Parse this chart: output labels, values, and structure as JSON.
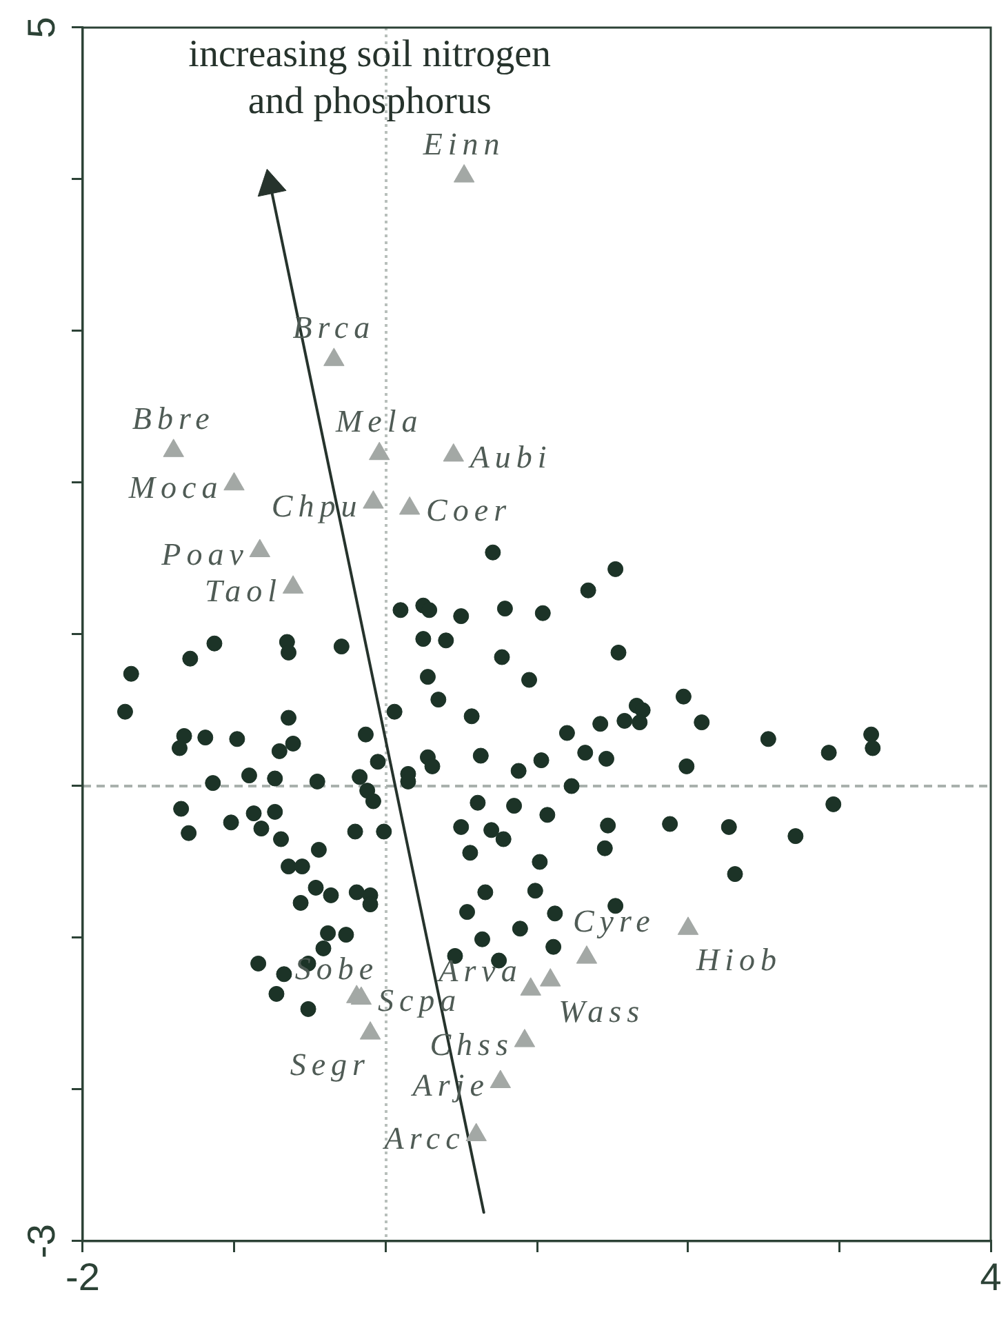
{
  "chart_data": {
    "type": "scatter",
    "xlim": [
      -2,
      4
    ],
    "ylim": [
      -3,
      5
    ],
    "xticks": [
      -2,
      {
        "value": -1,
        "label": null
      },
      {
        "value": 0,
        "label": null
      },
      {
        "value": 1,
        "label": null
      },
      {
        "value": 2,
        "label": null
      },
      {
        "value": 3,
        "label": null
      },
      4
    ],
    "yticks": [
      -3,
      {
        "value": -2,
        "label": null
      },
      {
        "value": -1,
        "label": null
      },
      {
        "value": 0,
        "label": null
      },
      {
        "value": 1,
        "label": null
      },
      {
        "value": 2,
        "label": null
      },
      {
        "value": 3,
        "label": null
      },
      {
        "value": 4,
        "label": null
      },
      5
    ],
    "series": [
      {
        "color": "#1c3327",
        "marker": "circle",
        "x": [
          -1.13,
          -1.29,
          -0.65,
          -0.64,
          -0.29,
          -1.68,
          -1.72,
          -0.64,
          0.06,
          -1.33,
          -1.36,
          -1.19,
          -0.98,
          -0.61,
          -0.7,
          -0.13,
          -0.05,
          0.15,
          0.15,
          -1.14,
          -0.9,
          -0.73,
          -0.45,
          -0.17,
          -0.12,
          -0.08,
          -1.35,
          -1.3,
          -1.02,
          -0.87,
          -0.73,
          -0.82,
          -0.69,
          -0.2,
          -0.01,
          -0.44,
          -0.64,
          -0.55,
          -0.46,
          -0.36,
          -0.56,
          -0.19,
          -0.1,
          -0.1,
          -0.38,
          -0.26,
          -0.41,
          -0.84,
          -0.51,
          -0.67,
          -0.72,
          -0.51,
          0.71,
          1.52,
          1.34,
          0.1,
          0.25,
          0.29,
          0.5,
          0.79,
          1.04,
          0.25,
          0.4,
          0.77,
          1.54,
          0.28,
          0.95,
          0.35,
          0.57,
          1.66,
          1.7,
          1.58,
          1.68,
          1.42,
          1.2,
          0.28,
          0.31,
          0.63,
          0.88,
          1.03,
          1.32,
          1.46,
          1.23,
          0.61,
          0.85,
          1.07,
          0.5,
          0.7,
          0.78,
          1.47,
          1.88,
          0.56,
          1.45,
          1.02,
          0.66,
          0.99,
          0.54,
          1.12,
          1.52,
          0.89,
          0.64,
          1.11,
          0.46,
          0.75,
          1.97,
          2.09,
          2.53,
          2.93,
          3.21,
          3.22,
          1.99,
          2.96,
          2.27,
          2.71,
          2.31
        ],
        "values": [
          0.94,
          0.84,
          0.95,
          0.88,
          0.92,
          0.74,
          0.49,
          0.45,
          0.49,
          0.33,
          0.25,
          0.32,
          0.31,
          0.28,
          0.23,
          0.34,
          0.16,
          0.08,
          0.03,
          0.02,
          0.07,
          0.05,
          0.03,
          0.06,
          -0.03,
          -0.1,
          -0.15,
          -0.31,
          -0.24,
          -0.18,
          -0.17,
          -0.28,
          -0.35,
          -0.3,
          -0.3,
          -0.42,
          -0.53,
          -0.53,
          -0.67,
          -0.72,
          -0.77,
          -0.7,
          -0.72,
          -0.78,
          -0.97,
          -0.98,
          -1.07,
          -1.17,
          -1.17,
          -1.24,
          -1.37,
          -1.47,
          1.54,
          1.43,
          1.29,
          1.16,
          1.19,
          1.16,
          1.12,
          1.17,
          1.14,
          0.97,
          0.96,
          0.85,
          0.88,
          0.72,
          0.7,
          0.57,
          0.46,
          0.53,
          0.5,
          0.43,
          0.42,
          0.41,
          0.35,
          0.19,
          0.13,
          0.2,
          0.1,
          0.17,
          0.22,
          0.18,
          0.0,
          -0.11,
          -0.13,
          -0.19,
          -0.27,
          -0.29,
          -0.35,
          -0.26,
          -0.25,
          -0.44,
          -0.41,
          -0.5,
          -0.7,
          -0.69,
          -0.83,
          -0.84,
          -0.79,
          -0.94,
          -1.01,
          -1.06,
          -1.12,
          -1.15,
          0.59,
          0.42,
          0.31,
          0.22,
          0.34,
          0.25,
          0.13,
          -0.12,
          -0.27,
          -0.33,
          -0.58
        ]
      },
      {
        "color": "#a3a8a5",
        "marker": "triangle",
        "x": [
          0.52,
          -0.34,
          -1.4,
          -0.04,
          0.45,
          -1.0,
          -0.08,
          0.16,
          -0.83,
          -0.61,
          1.33,
          2.0,
          -0.19,
          -0.16,
          -0.1,
          0.96,
          1.09,
          0.92,
          0.76,
          0.6
        ],
        "values": [
          4.02,
          2.81,
          2.21,
          2.19,
          2.18,
          1.99,
          1.87,
          1.83,
          1.55,
          1.31,
          -1.13,
          -0.94,
          -1.39,
          -1.4,
          -1.63,
          -1.34,
          -1.28,
          -1.68,
          -1.95,
          -2.3
        ]
      },
      {
        "type": "line",
        "name": "increasing soil nitrogen and phosphorus",
        "color": "#26332c",
        "marker": "triangle",
        "line_style": "solid",
        "x": [
          0.65,
          -0.76
        ],
        "values": [
          -2.81,
          3.96
        ]
      }
    ],
    "ref_lines": [
      {
        "axis": "x",
        "value": 0,
        "color": "#b8bfbb",
        "line_style": "dotted"
      },
      {
        "axis": "y",
        "value": 0,
        "color": "#a9b1ad",
        "line_style": "dashed"
      }
    ],
    "annotations": [
      {
        "text": "Einn",
        "x": 0.52,
        "y": 4.02
      },
      {
        "text": "Brca",
        "x": -0.34,
        "y": 2.81
      },
      {
        "text": "Bbre",
        "x": -1.4,
        "y": 2.21
      },
      {
        "text": "Mela",
        "x": -0.04,
        "y": 2.19
      },
      {
        "text": "Aubi",
        "x": 0.45,
        "y": 2.18
      },
      {
        "text": "Moca",
        "x": -1.0,
        "y": 1.99
      },
      {
        "text": "Chpu",
        "x": -0.08,
        "y": 1.87
      },
      {
        "text": "Coer",
        "x": 0.16,
        "y": 1.83
      },
      {
        "text": "Poav",
        "x": -0.83,
        "y": 1.55
      },
      {
        "text": "Taol",
        "x": -0.61,
        "y": 1.31
      },
      {
        "text": "Cyre",
        "x": 1.33,
        "y": -1.13
      },
      {
        "text": "Hiob",
        "x": 2.0,
        "y": -0.94
      },
      {
        "text": "Sobe",
        "x": -0.19,
        "y": -1.39
      },
      {
        "text": "Scpa",
        "x": -0.16,
        "y": -1.4
      },
      {
        "text": "Segr",
        "x": -0.1,
        "y": -1.63
      },
      {
        "text": "Arva",
        "x": 0.96,
        "y": -1.34
      },
      {
        "text": "Wass",
        "x": 1.09,
        "y": -1.28
      },
      {
        "text": "Chss",
        "x": 0.92,
        "y": -1.68
      },
      {
        "text": "Arje",
        "x": 0.76,
        "y": -1.95
      },
      {
        "text": "Arcc",
        "x": 0.6,
        "y": -2.3
      }
    ]
  }
}
